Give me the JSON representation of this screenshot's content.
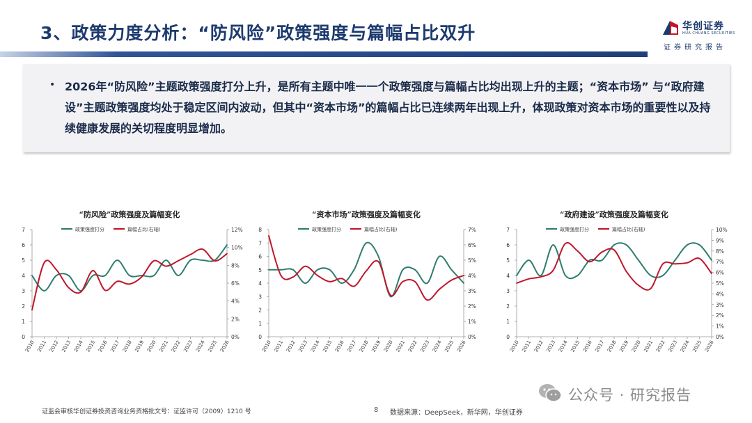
{
  "header": {
    "title": "3、政策力度分析：“防风险”政策强度与篇幅占比双升",
    "logo_cn": "华创证券",
    "logo_en": "HUA CHUANG SECURITIES",
    "report_tag": "证券研究报告"
  },
  "summary": {
    "bullet": "•",
    "text": "2026年“防风险”主题政策强度打分上升，是所有主题中唯一一个政策强度与篇幅占比均出现上升的主题；“资本市场” 与“政府建设”主题政策强度均处于稳定区间内波动，但其中“资本市场”的篇幅占比已连续两年出现上升，体现政策对资本市场的重要性以及持续健康发展的关切程度明显增加。"
  },
  "colors": {
    "score_series": "#2e7d6e",
    "share_series": "#c0172b",
    "title_blue": "#1d3a6e"
  },
  "chart_data": [
    {
      "type": "line",
      "title": "“防风险”政策强度及篇幅变化",
      "x": [
        "2010",
        "2011",
        "2012",
        "2013",
        "2014",
        "2015",
        "2016",
        "2017",
        "2018",
        "2019",
        "2020",
        "2021",
        "2022",
        "2023",
        "2024",
        "2025",
        "2026"
      ],
      "series": [
        {
          "name": "政策强度打分",
          "axis": "left",
          "values": [
            4,
            3,
            4,
            4,
            3,
            4,
            4,
            5,
            4,
            4,
            4,
            5,
            4,
            5,
            5,
            5,
            6
          ]
        },
        {
          "name": "篇幅占比(右轴)",
          "axis": "right",
          "values": [
            3.0,
            8.3,
            7.5,
            5.5,
            5.0,
            7.4,
            5.2,
            6.2,
            5.9,
            6.7,
            8.5,
            7.9,
            8.5,
            9.2,
            9.8,
            8.5,
            9.3
          ]
        }
      ],
      "ylim_left": [
        0,
        7
      ],
      "yticks_left": [
        "0",
        "1",
        "2",
        "3",
        "4",
        "5",
        "6",
        "7"
      ],
      "ylim_right": [
        0,
        12
      ],
      "yticks_right": [
        "0%",
        "2%",
        "4%",
        "6%",
        "8%",
        "10%",
        "12%"
      ]
    },
    {
      "type": "line",
      "title": "“资本市场”政策强度及篇幅变化",
      "x": [
        "2010",
        "2011",
        "2012",
        "2013",
        "2014",
        "2015",
        "2016",
        "2017",
        "2018",
        "2019",
        "2020",
        "2021",
        "2022",
        "2023",
        "2024",
        "2025",
        "2026"
      ],
      "series": [
        {
          "name": "政策强度打分",
          "axis": "left",
          "values": [
            5,
            5,
            5,
            4,
            5,
            5,
            4,
            5,
            7,
            6,
            3,
            5,
            5,
            4,
            6,
            5,
            4
          ]
        },
        {
          "name": "篇幅占比(右轴)",
          "axis": "right",
          "values": [
            6.6,
            4.0,
            3.9,
            4.6,
            4.0,
            3.6,
            3.8,
            3.3,
            4.3,
            4.9,
            2.7,
            3.6,
            3.6,
            2.4,
            3.1,
            3.7,
            4.0
          ]
        }
      ],
      "ylim_left": [
        0,
        8
      ],
      "yticks_left": [
        "0",
        "1",
        "2",
        "3",
        "4",
        "5",
        "6",
        "7",
        "8"
      ],
      "ylim_right": [
        0,
        7
      ],
      "yticks_right": [
        "0%",
        "1%",
        "2%",
        "3%",
        "4%",
        "5%",
        "6%",
        "7%"
      ]
    },
    {
      "type": "line",
      "title": "“政府建设”政策强度及篇幅变化",
      "x": [
        "2010",
        "2011",
        "2012",
        "2013",
        "2014",
        "2015",
        "2016",
        "2017",
        "2018",
        "2019",
        "2020",
        "2021",
        "2022",
        "2023",
        "2024",
        "2025",
        "2026"
      ],
      "series": [
        {
          "name": "政策强度打分",
          "axis": "left",
          "values": [
            4,
            5,
            4,
            6,
            4,
            4,
            5,
            5,
            6,
            6,
            5,
            4,
            4,
            5,
            6,
            6,
            5
          ]
        },
        {
          "name": "篇幅占比(右轴)",
          "axis": "right",
          "values": [
            5.0,
            5.4,
            5.6,
            6.2,
            8.7,
            8.0,
            7.0,
            7.9,
            8.1,
            6.1,
            4.8,
            4.5,
            6.8,
            6.8,
            6.9,
            7.3,
            5.9
          ]
        }
      ],
      "ylim_left": [
        0,
        7
      ],
      "yticks_left": [
        "0",
        "1",
        "2",
        "3",
        "4",
        "5",
        "6",
        "7"
      ],
      "ylim_right": [
        0,
        10
      ],
      "yticks_right": [
        "0%",
        "1%",
        "2%",
        "3%",
        "4%",
        "5%",
        "6%",
        "7%",
        "8%",
        "9%",
        "10%"
      ]
    }
  ],
  "footer": {
    "license": "证监会审核华创证券投资咨询业务资格批文号：证监许可（2009）1210 号",
    "page_number": "8",
    "source": "数据来源：DeepSeek，新华网，华创证券"
  },
  "watermark": {
    "icon": "wechat-icon",
    "text": "公众号 · 研究报告"
  }
}
